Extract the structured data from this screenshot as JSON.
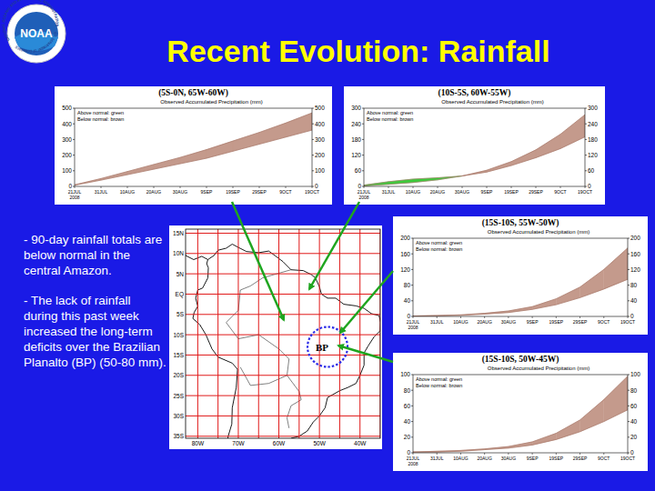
{
  "header": {
    "title": "Recent Evolution: Rainfall",
    "logo": {
      "center": "NOAA",
      "ring_top": "NATIONAL OCEANIC AND ATMOSPHERIC ADMINISTRATION",
      "ring_bottom": "U.S. DEPARTMENT OF COMMERCE"
    }
  },
  "notes": [
    "- 90-day rainfall totals are below normal in the central Amazon.",
    "- The lack of rainfall during this past week increased the long-term deficits over the Brazilian Planalto (BP) (50-80 mm)."
  ],
  "map": {
    "lon_range": [
      -83,
      -35
    ],
    "lat_range": [
      -35.5,
      16
    ],
    "lat_ticks": [
      {
        "value": 15,
        "label": "15N"
      },
      {
        "value": 10,
        "label": "10N"
      },
      {
        "value": 5,
        "label": "5N"
      },
      {
        "value": 0,
        "label": "EQ"
      },
      {
        "value": -5,
        "label": "5S"
      },
      {
        "value": -10,
        "label": "10S"
      },
      {
        "value": -15,
        "label": "15S"
      },
      {
        "value": -20,
        "label": "20S"
      },
      {
        "value": -25,
        "label": "25S"
      },
      {
        "value": -30,
        "label": "30S"
      },
      {
        "value": -35,
        "label": "35S"
      }
    ],
    "lon_ticks": [
      {
        "value": -80,
        "label": "80W"
      },
      {
        "value": -70,
        "label": "70W"
      },
      {
        "value": -60,
        "label": "60W"
      },
      {
        "value": -50,
        "label": "50W"
      },
      {
        "value": -40,
        "label": "40W"
      }
    ],
    "region_label": "BP"
  },
  "chart_data": [
    {
      "type": "area",
      "title": "(5S-0N, 65W-60W)",
      "subtitle": "Observed Accumulated Precipitation (mm)",
      "annotations": [
        {
          "text": "Above normal: green",
          "color": "#3ccc3c"
        },
        {
          "text": "Below normal: brown",
          "color": "#c49a8c"
        }
      ],
      "categories": [
        "21JUL 2008",
        "31JUL",
        "10AUG",
        "20AUG",
        "30AUG",
        "9SEP",
        "19SEP",
        "29SEP",
        "9OCT",
        "19OCT"
      ],
      "series": [
        {
          "color": "#a8786a",
          "values": [
            8,
            40,
            75,
            110,
            145,
            180,
            225,
            270,
            315,
            360
          ]
        },
        {
          "color": "#a8786a",
          "values": [
            10,
            50,
            95,
            140,
            185,
            235,
            290,
            345,
            405,
            470
          ]
        }
      ],
      "ylim": [
        0,
        500
      ],
      "yticks": [
        0,
        100,
        200,
        300,
        400,
        500
      ],
      "grid": false
    },
    {
      "type": "area",
      "title": "(10S-5S, 60W-55W)",
      "subtitle": "Observed Accumulated Precipitation (mm)",
      "annotations": [
        {
          "text": "Above normal: green",
          "color": "#3ccc3c"
        },
        {
          "text": "Below normal: brown",
          "color": "#c49a8c"
        }
      ],
      "categories": [
        "21JUL 2008",
        "31JUL",
        "10AUG",
        "20AUG",
        "30AUG",
        "9SEP",
        "19SEP",
        "29SEP",
        "9OCT",
        "19OCT"
      ],
      "series": [
        {
          "color": "#a8786a",
          "values": [
            5,
            18,
            28,
            33,
            40,
            55,
            80,
            110,
            145,
            190
          ]
        },
        {
          "color": "#a8786a",
          "values": [
            2,
            8,
            15,
            25,
            40,
            62,
            95,
            140,
            200,
            275
          ]
        }
      ],
      "ylim": [
        0,
        300
      ],
      "yticks": [
        0,
        60,
        120,
        180,
        240,
        300
      ],
      "grid": false
    },
    {
      "type": "area",
      "title": "(15S-10S, 55W-50W)",
      "subtitle": "Observed Accumulated Precipitation (mm)",
      "annotations": [
        {
          "text": "Above normal: green",
          "color": "#3ccc3c"
        },
        {
          "text": "Below normal: brown",
          "color": "#c49a8c"
        }
      ],
      "categories": [
        "21JUL 2008",
        "31JUL",
        "10AUG",
        "20AUG",
        "30AUG",
        "9SEP",
        "19SEP",
        "29SEP",
        "9OCT",
        "19OCT"
      ],
      "series": [
        {
          "color": "#a8786a",
          "values": [
            1,
            2,
            3,
            6,
            10,
            18,
            30,
            48,
            70,
            95
          ]
        },
        {
          "color": "#a8786a",
          "values": [
            1,
            2,
            4,
            8,
            14,
            25,
            45,
            75,
            120,
            175
          ]
        }
      ],
      "ylim": [
        0,
        200
      ],
      "yticks": [
        0,
        40,
        80,
        120,
        160,
        200
      ],
      "grid": false
    },
    {
      "type": "area",
      "title": "(15S-10S, 50W-45W)",
      "subtitle": "Observed Accumulated Precipitation (mm)",
      "annotations": [
        {
          "text": "Above normal: green",
          "color": "#3ccc3c"
        },
        {
          "text": "Below normal: brown",
          "color": "#c49a8c"
        }
      ],
      "categories": [
        "21JUL 2008",
        "31JUL",
        "10AUG",
        "20AUG",
        "30AUG",
        "9SEP",
        "19SEP",
        "29SEP",
        "9OCT",
        "19OCT"
      ],
      "series": [
        {
          "color": "#a8786a",
          "values": [
            1,
            1,
            2,
            4,
            6,
            10,
            17,
            27,
            40,
            55
          ]
        },
        {
          "color": "#a8786a",
          "values": [
            1,
            2,
            3,
            5,
            8,
            14,
            25,
            42,
            68,
            98
          ]
        }
      ],
      "ylim": [
        0,
        100
      ],
      "yticks": [
        0,
        20,
        40,
        60,
        80,
        100
      ],
      "grid": false
    }
  ]
}
